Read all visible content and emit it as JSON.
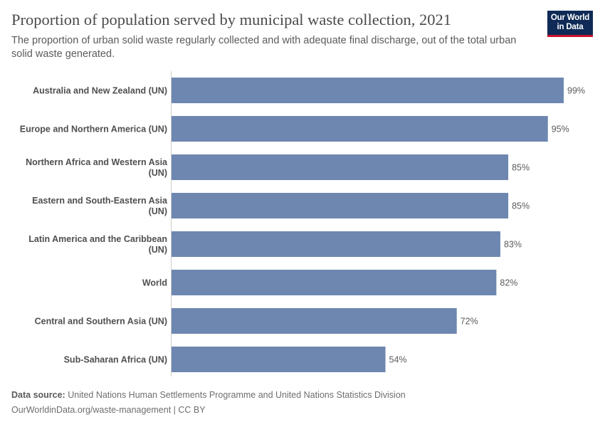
{
  "header": {
    "title": "Proportion of population served by municipal waste collection, 2021",
    "subtitle": "The proportion of urban solid waste regularly collected and with adequate final discharge, out of the total urban solid waste generated."
  },
  "logo": {
    "line1": "Our World",
    "line2": "in Data"
  },
  "footer": {
    "source_label": "Data source:",
    "source_text": "United Nations Human Settlements Programme and United Nations Statistics Division",
    "url_text": "OurWorldinData.org/waste-management | CC BY"
  },
  "colors": {
    "bar": "#6d87b0",
    "axis": "#cccccc",
    "label": "#4f4f4f",
    "value": "#5b5b5b"
  },
  "chart_data": {
    "type": "bar",
    "orientation": "horizontal",
    "title": "Proportion of population served by municipal waste collection, 2021",
    "xlabel": "",
    "ylabel": "",
    "xlim": [
      0,
      100
    ],
    "unit": "%",
    "categories": [
      [
        "Australia and New Zealand (UN)"
      ],
      [
        "Europe and Northern America (UN)"
      ],
      [
        "Northern Africa and Western Asia",
        "(UN)"
      ],
      [
        "Eastern and South-Eastern Asia",
        "(UN)"
      ],
      [
        "Latin America and the Caribbean",
        "(UN)"
      ],
      [
        "World"
      ],
      [
        "Central and Southern Asia (UN)"
      ],
      [
        "Sub-Saharan Africa (UN)"
      ]
    ],
    "values": [
      99,
      95,
      85,
      85,
      83,
      82,
      72,
      54
    ],
    "value_labels": [
      "99%",
      "95%",
      "85%",
      "85%",
      "83%",
      "82%",
      "72%",
      "54%"
    ]
  }
}
